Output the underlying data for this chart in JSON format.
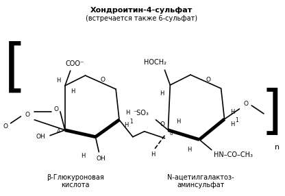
{
  "title_line1": "Хондроитин-4-сульфат",
  "title_line2": "(встречается также 6-сульфат)",
  "label_left": "β-Глюкуроновая\nкислота",
  "label_right": "N-ацетилгалактоз-\nаминсульфат",
  "bg_color": "#ffffff",
  "line_color": "#000000",
  "text_color": "#000000",
  "figsize": [
    4.16,
    2.86
  ],
  "dpi": 100
}
